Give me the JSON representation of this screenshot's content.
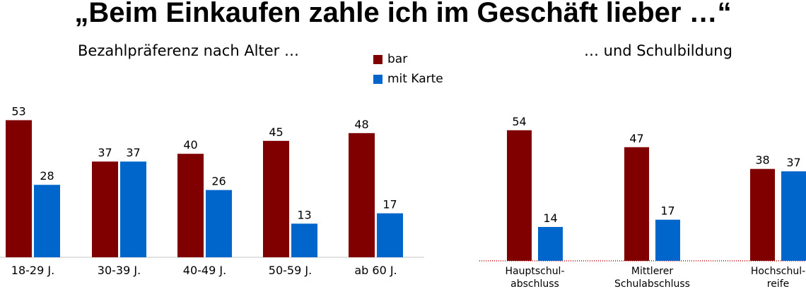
{
  "title": "„Beim Einkaufen zahle ich im Geschäft lieber …“",
  "legend": {
    "items": [
      {
        "label": "bar",
        "color": "#800000"
      },
      {
        "label": "mit Karte",
        "color": "#0066CC"
      }
    ]
  },
  "chart_data": [
    {
      "type": "bar",
      "title": "Bezahlpräferenz nach Alter …",
      "categories": [
        "18-29 J.",
        "30-39 J.",
        "40-49 J.",
        "50-59 J.",
        "ab 60 J."
      ],
      "series": [
        {
          "name": "bar",
          "values": [
            53,
            37,
            40,
            45,
            48
          ]
        },
        {
          "name": "mit Karte",
          "values": [
            28,
            37,
            26,
            13,
            17
          ]
        }
      ],
      "ylim": [
        0,
        60
      ],
      "grid": false
    },
    {
      "type": "bar",
      "title": "… und Schulbildung",
      "categories": [
        [
          "Hauptschul-",
          "abschluss"
        ],
        [
          "Mittlerer",
          "Schulabschluss"
        ],
        [
          "Hochschul-",
          "reife"
        ]
      ],
      "series": [
        {
          "name": "bar",
          "values": [
            54,
            47,
            38
          ]
        },
        {
          "name": "mit Karte",
          "values": [
            14,
            17,
            37
          ]
        }
      ],
      "ylim": [
        0,
        60
      ],
      "grid": false
    }
  ]
}
